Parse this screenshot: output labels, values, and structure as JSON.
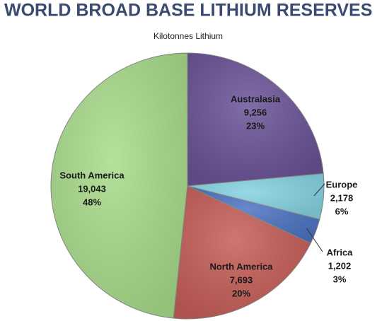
{
  "chart_data": {
    "type": "pie",
    "title": "WORLD BROAD BASE LITHIUM RESERVES",
    "subtitle": "Kilotonnes Lithium",
    "categories": [
      "Australasia",
      "Europe",
      "Africa",
      "North America",
      "South America"
    ],
    "values": [
      9256,
      2178,
      1202,
      7693,
      19043
    ],
    "value_labels": [
      "9,256",
      "2,178",
      "1,202",
      "7,693",
      "19,043"
    ],
    "percent_labels": [
      "23%",
      "6%",
      "3%",
      "20%",
      "48%"
    ],
    "colors": [
      "#6b5397",
      "#86d3e3",
      "#4d74c2",
      "#c65e58",
      "#a9dc8c"
    ]
  }
}
